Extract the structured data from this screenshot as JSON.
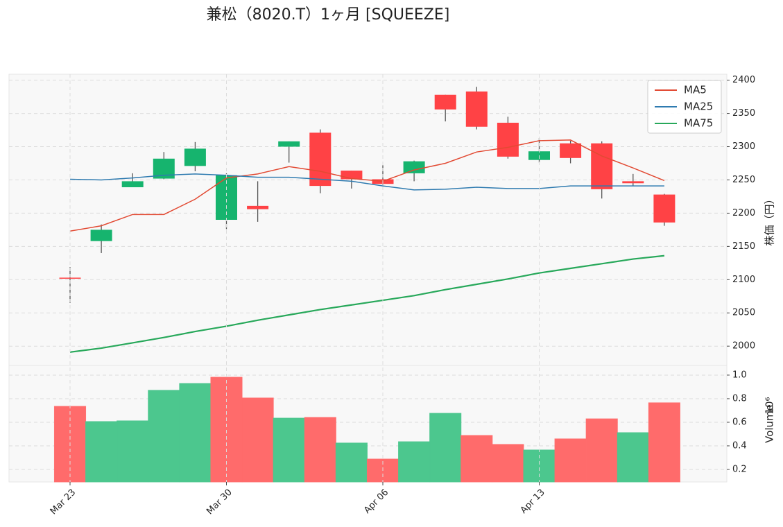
{
  "title": "兼松（8020.T）1ヶ月 [SQUEEZE]",
  "chart_data": [
    {
      "type": "candlestick",
      "ylabel": "株価（円）",
      "categories": [
        "Mar 23",
        null,
        null,
        null,
        null,
        "Mar 30",
        null,
        null,
        null,
        null,
        "Apr 06",
        null,
        null,
        null,
        null,
        "Apr 13",
        null,
        null,
        null,
        null
      ],
      "open": [
        2103,
        2158,
        2239,
        2252,
        2271,
        2190,
        2211,
        2300,
        2321,
        2264,
        2251,
        2260,
        2378,
        2383,
        2336,
        2280,
        2305,
        2305,
        2248,
        2228
      ],
      "high": [
        2119,
        2183,
        2260,
        2292,
        2307,
        2260,
        2248,
        2308,
        2326,
        2264,
        2272,
        2279,
        2378,
        2390,
        2345,
        2313,
        2309,
        2308,
        2259,
        2229
      ],
      "low": [
        2065,
        2140,
        2239,
        2251,
        2263,
        2176,
        2187,
        2276,
        2230,
        2237,
        2243,
        2248,
        2338,
        2326,
        2282,
        2276,
        2275,
        2222,
        2241,
        2181
      ],
      "close": [
        2102,
        2175,
        2248,
        2282,
        2297,
        2257,
        2206,
        2308,
        2241,
        2251,
        2244,
        2278,
        2356,
        2330,
        2285,
        2293,
        2283,
        2236,
        2245,
        2186
      ],
      "color_up": "#16b46e",
      "color_down": "#ff4245",
      "series": [
        {
          "name": "MA5",
          "color": "#e24a33",
          "values": [
            2173,
            2181,
            2198,
            2198,
            2221,
            2253,
            2259,
            2270,
            2263,
            2252,
            2248,
            2265,
            2275,
            2292,
            2299,
            2309,
            2310,
            2286,
            2268,
            2249
          ]
        },
        {
          "name": "MA25",
          "color": "#2f7bb0",
          "values": [
            2251,
            2250,
            2253,
            2257,
            2259,
            2257,
            2254,
            2254,
            2251,
            2248,
            2241,
            2235,
            2236,
            2239,
            2237,
            2237,
            2241,
            2241,
            2241,
            2241
          ]
        },
        {
          "name": "MA75",
          "color": "#27a85a",
          "values": [
            1991,
            1997,
            2005,
            2013,
            2022,
            2030,
            2039,
            2047,
            2055,
            2062,
            2069,
            2076,
            2085,
            2093,
            2101,
            2110,
            2117,
            2124,
            2131,
            2136
          ]
        }
      ],
      "ylim": [
        1971,
        2409
      ],
      "yticks": [
        2000,
        2050,
        2100,
        2150,
        2200,
        2250,
        2300,
        2350,
        2400
      ],
      "grid": true,
      "legend": "upper right"
    },
    {
      "type": "bar",
      "ylabel": "Volume",
      "scale_label": "10⁶",
      "values": [
        0.735,
        0.606,
        0.612,
        0.871,
        0.929,
        0.982,
        0.806,
        0.635,
        0.641,
        0.424,
        0.288,
        0.435,
        0.676,
        0.488,
        0.412,
        0.365,
        0.459,
        0.629,
        0.512,
        0.765
      ],
      "colors": [
        "#ff6b6b",
        "#4cc78e",
        "#4cc78e",
        "#4cc78e",
        "#4cc78e",
        "#ff6b6b",
        "#ff6b6b",
        "#4cc78e",
        "#ff6b6b",
        "#4cc78e",
        "#ff6b6b",
        "#4cc78e",
        "#4cc78e",
        "#ff6b6b",
        "#ff6b6b",
        "#4cc78e",
        "#ff6b6b",
        "#ff6b6b",
        "#4cc78e",
        "#ff6b6b"
      ],
      "ylim": [
        0.094,
        1.082
      ],
      "yticks": [
        0.2,
        0.4,
        0.6,
        0.8,
        {
          "value": 1,
          "label": "1.0"
        }
      ],
      "grid": true
    }
  ]
}
